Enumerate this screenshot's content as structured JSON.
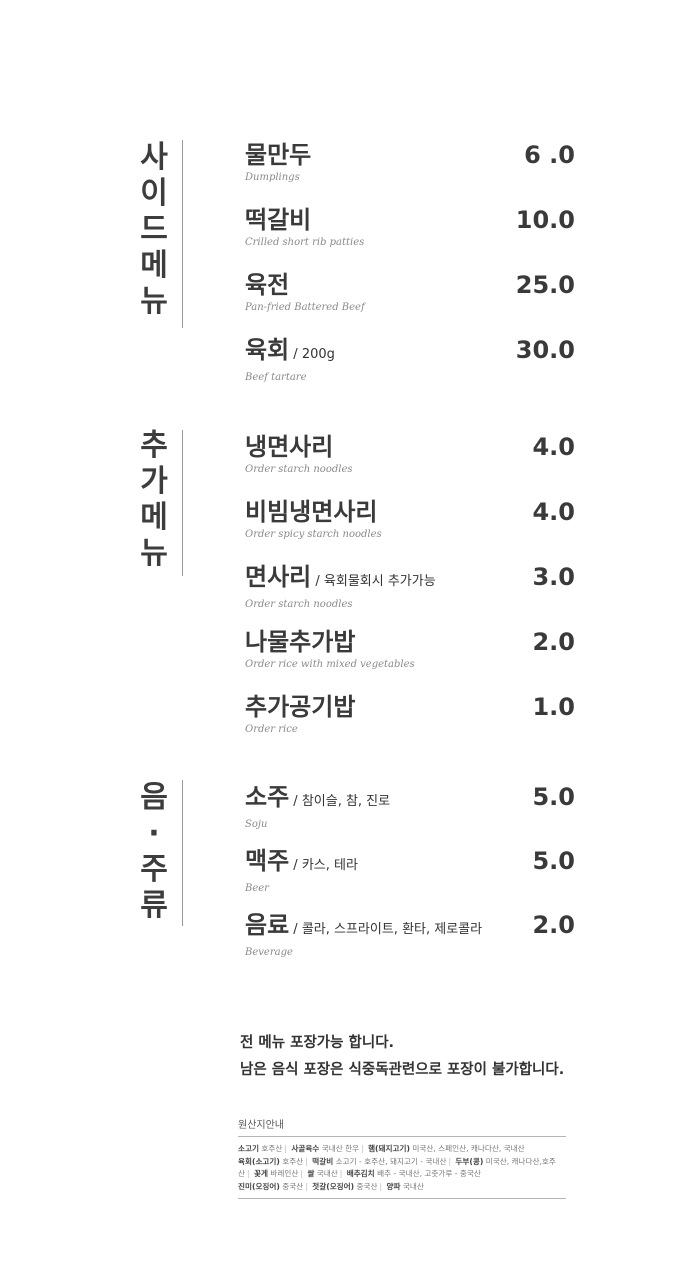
{
  "sections": [
    {
      "title": [
        "사",
        "이",
        "드",
        "메",
        "뉴"
      ],
      "items": [
        {
          "name": "물만두",
          "note": "",
          "en": "Dumplings",
          "price": "6 .0"
        },
        {
          "name": "떡갈비",
          "note": "",
          "en": "Crilled short rib patties",
          "price": "10.0"
        },
        {
          "name": "육전",
          "note": "",
          "en": "Pan-fried Battered Beef",
          "price": "25.0"
        },
        {
          "name": "육회",
          "note": " / 200g",
          "en": "Beef tartare",
          "price": "30.0"
        }
      ]
    },
    {
      "title": [
        "추",
        "가",
        "메",
        "뉴"
      ],
      "items": [
        {
          "name": "냉면사리",
          "note": "",
          "en": "Order starch noodles",
          "price": "4.0"
        },
        {
          "name": "비빔냉면사리",
          "note": "",
          "en": "Order spicy starch noodles",
          "price": "4.0"
        },
        {
          "name": "면사리",
          "note": " / 육회물회시 추가가능",
          "en": "Order starch noodles",
          "price": "3.0"
        },
        {
          "name": "나물추가밥",
          "note": "",
          "en": "Order rice with mixed vegetables",
          "price": "2.0"
        },
        {
          "name": "추가공기밥",
          "note": "",
          "en": "Order rice",
          "price": "1.0"
        }
      ]
    },
    {
      "title": [
        "음",
        "·",
        "주",
        "류"
      ],
      "items": [
        {
          "name": "소주",
          "note": " / 참이슬, 참, 진로",
          "en": "Soju",
          "price": "5.0"
        },
        {
          "name": "맥주",
          "note": " / 카스, 테라",
          "en": "Beer",
          "price": "5.0"
        },
        {
          "name": "음료",
          "note": " / 콜라, 스프라이트, 환타, 제로콜라",
          "en": "Beverage",
          "price": "2.0"
        }
      ]
    }
  ],
  "notice": {
    "line1": "전 메뉴 포장가능 합니다.",
    "line2": "남은 음식 포장은 식중독관련으로 포장이 불가합니다."
  },
  "origin": {
    "title": "원산지안내",
    "entries": [
      {
        "k": "소고기",
        "v": "호주산"
      },
      {
        "k": "사골육수",
        "v": "국내산 한우"
      },
      {
        "k": "햄(돼지고기)",
        "v": "미국산, 스페인산, 캐나다산, 국내산"
      },
      {
        "k": "육회(소고기)",
        "v": "호주산"
      },
      {
        "k": "떡갈비",
        "v": "소고기 - 호주산, 돼지고기 - 국내산"
      },
      {
        "k": "두부(콩)",
        "v": "미국산, 캐나다산,호주산"
      },
      {
        "k": "꽃게",
        "v": "바레인산"
      },
      {
        "k": "쌀",
        "v": "국내산"
      },
      {
        "k": "배추김치",
        "v": "배추 - 국내산, 고춧가루 - 중국산"
      },
      {
        "k": "진미(오징어)",
        "v": "중국산"
      },
      {
        "k": "젓갈(오징어)",
        "v": "중국산"
      },
      {
        "k": "양파",
        "v": "국내산"
      }
    ]
  }
}
